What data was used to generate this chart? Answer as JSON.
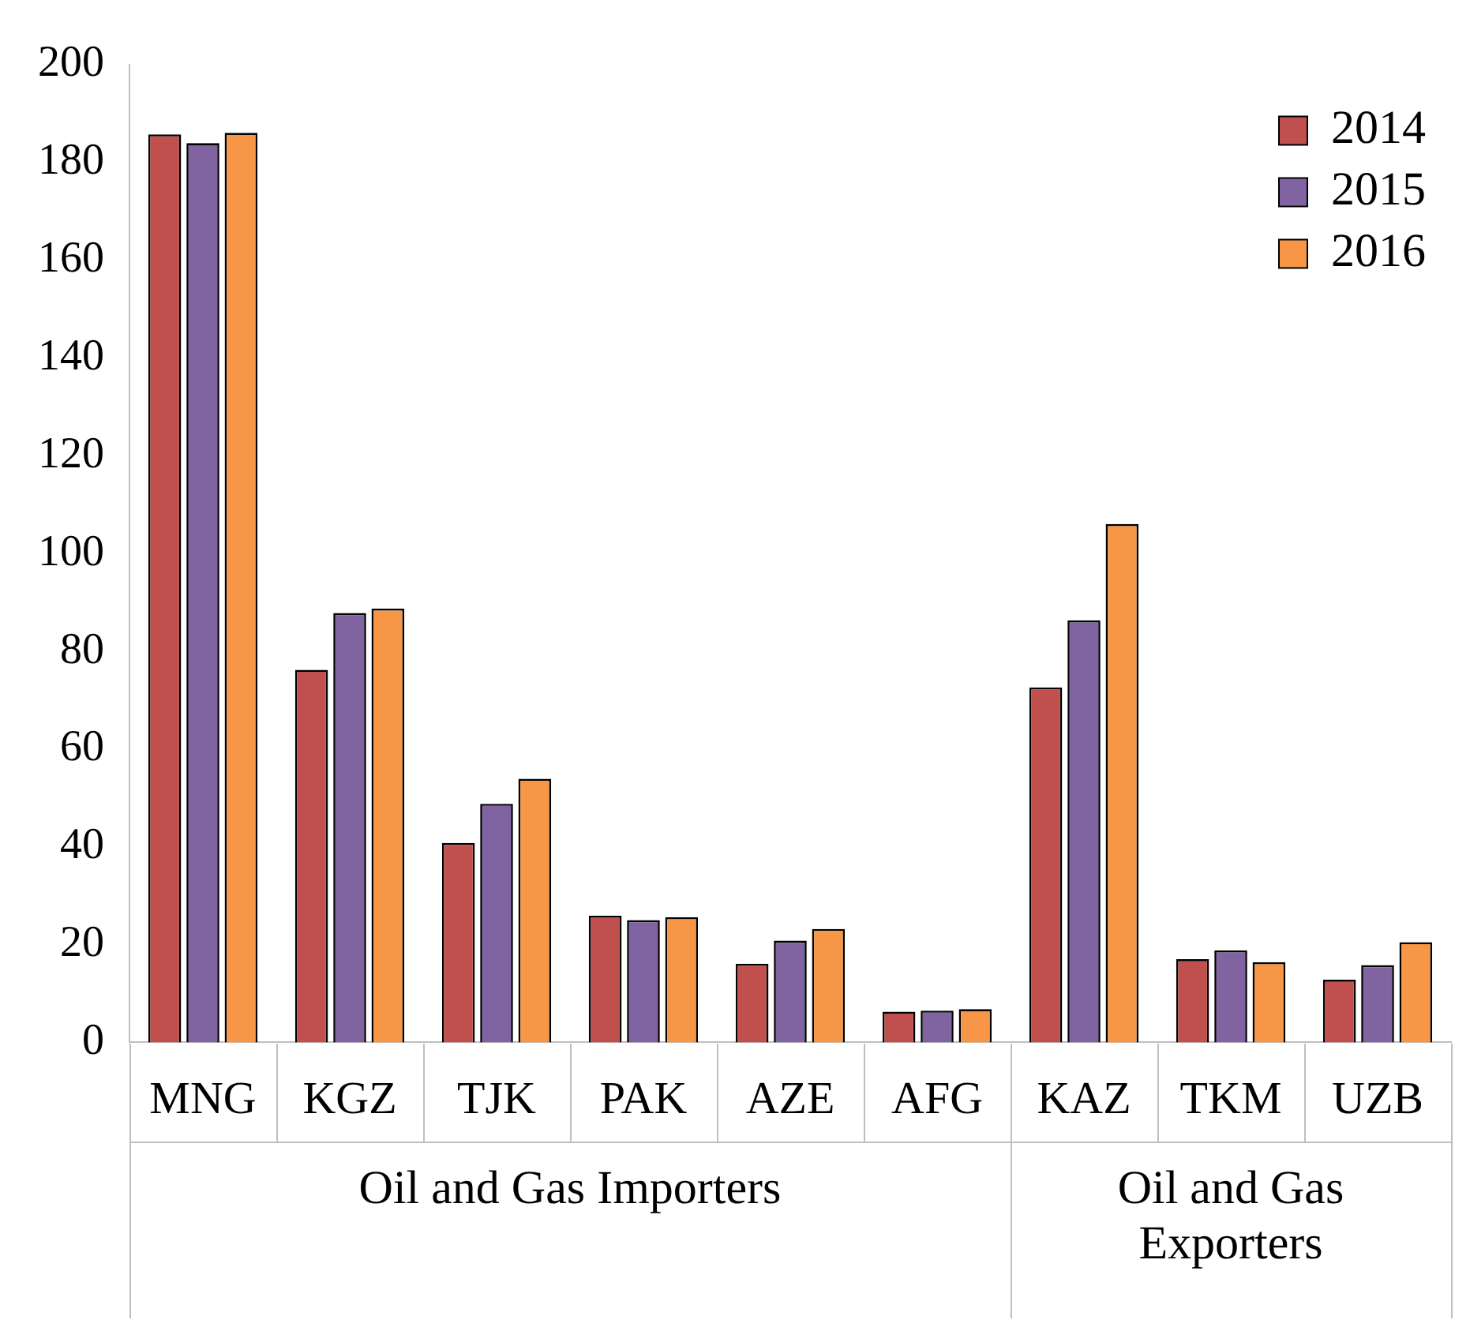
{
  "chart_data": {
    "type": "bar",
    "categories": [
      "MNG",
      "KGZ",
      "TJK",
      "PAK",
      "AZE",
      "AFG",
      "KAZ",
      "TKM",
      "UZB"
    ],
    "series": [
      {
        "name": "2014",
        "color": "#c0504d",
        "values": [
          185.7,
          76.2,
          40.8,
          25.9,
          16.1,
          6.3,
          72.6,
          17,
          12.8
        ]
      },
      {
        "name": "2015",
        "color": "#8064a2",
        "values": [
          183.9,
          87.8,
          48.8,
          25,
          20.8,
          6.5,
          86.3,
          18.8,
          15.8
        ]
      },
      {
        "name": "2016",
        "color": "#f79646",
        "values": [
          186,
          88.7,
          53.9,
          25.6,
          23.2,
          6.8,
          106,
          16.4,
          20.5
        ]
      }
    ],
    "ylim": [
      0,
      200
    ],
    "yticks": [
      0,
      20,
      40,
      60,
      80,
      100,
      120,
      140,
      160,
      180,
      200
    ],
    "grid": false,
    "legend": "top right",
    "annotations": [
      "Oil and Gas Importers",
      "Oil and Gas Exporters"
    ]
  }
}
